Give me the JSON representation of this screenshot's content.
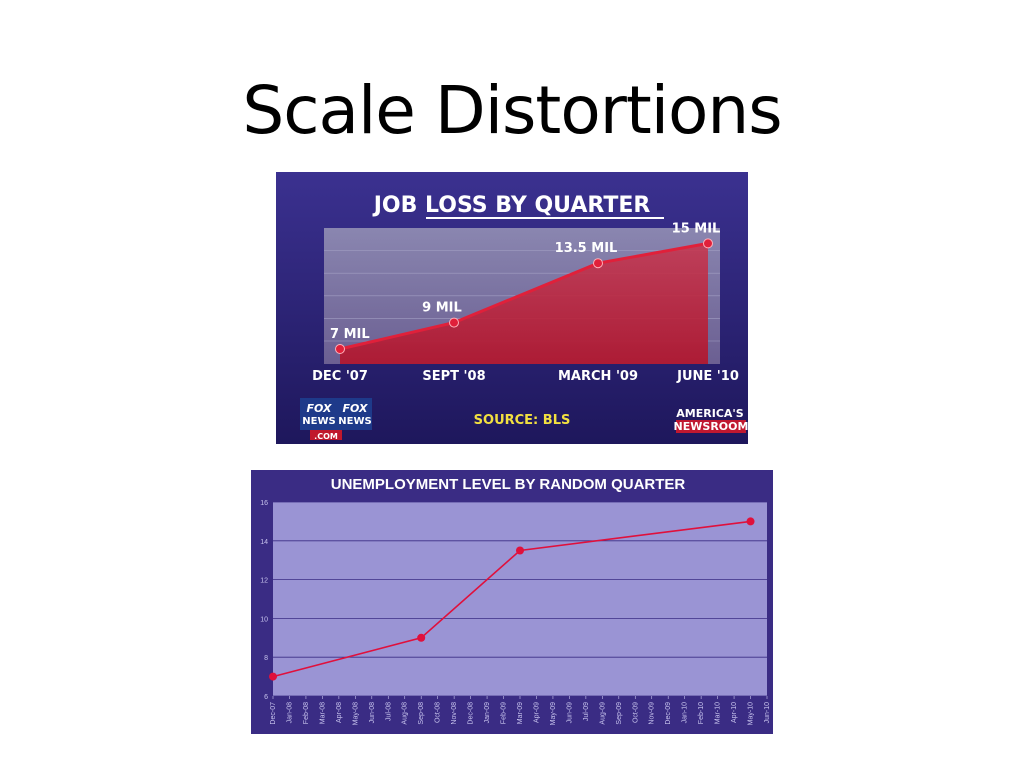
{
  "slide": {
    "title": "Scale Distortions"
  },
  "colors": {
    "fox_background": "#2a2070",
    "fox_fill": "#b8203a",
    "fox_line": "#d8142c",
    "fox_label": "#ffffff",
    "fox_source": "#f2e040",
    "unemp_frame": "#3a2c84",
    "unemp_plot": "#9a94d4",
    "unemp_line": "#e0103c",
    "unemp_tick": "#2a2060"
  },
  "fox": {
    "logo_left_line1": "FOX",
    "logo_left_line2": "NEWS",
    "logo_right_line1": "FOX",
    "logo_right_line2": "NEWS",
    "logo_com": ".COM",
    "source": "SOURCE: BLS",
    "brand_line1": "AMERICA'S",
    "brand_line2": "NEWSROOM"
  },
  "chart_data": [
    {
      "type": "line",
      "title": "JOB LOSS BY QUARTER",
      "categories": [
        "DEC '07",
        "SEPT '08",
        "MARCH '09",
        "JUNE '10"
      ],
      "values": [
        7,
        9,
        13.5,
        15
      ],
      "data_labels": [
        "7 MIL",
        "9 MIL",
        "13.5 MIL",
        "15 MIL"
      ],
      "grid": true,
      "legend": "none"
    },
    {
      "type": "line",
      "title": "UNEMPLOYMENT LEVEL BY RANDOM QUARTER",
      "x_ticks": [
        "Dec-07",
        "Jan-08",
        "Feb-08",
        "Mar-08",
        "Apr-08",
        "May-08",
        "Jun-08",
        "Jul-08",
        "Aug-08",
        "Sep-08",
        "Oct-08",
        "Nov-08",
        "Dec-08",
        "Jan-09",
        "Feb-09",
        "Mar-09",
        "Apr-09",
        "May-09",
        "Jun-09",
        "Jul-09",
        "Aug-09",
        "Sep-09",
        "Oct-09",
        "Nov-09",
        "Dec-09",
        "Jan-10",
        "Feb-10",
        "Mar-10",
        "Apr-10",
        "May-10",
        "Jun-10"
      ],
      "y_ticks": [
        "6",
        "8",
        "10",
        "12",
        "14",
        "16"
      ],
      "ylim": [
        6,
        16
      ],
      "points": [
        {
          "x": "Dec-07",
          "y": 7
        },
        {
          "x": "Sep-08",
          "y": 9
        },
        {
          "x": "Mar-09",
          "y": 13.5
        },
        {
          "x": "May-10",
          "y": 15
        }
      ],
      "grid": true,
      "legend": "none"
    }
  ]
}
